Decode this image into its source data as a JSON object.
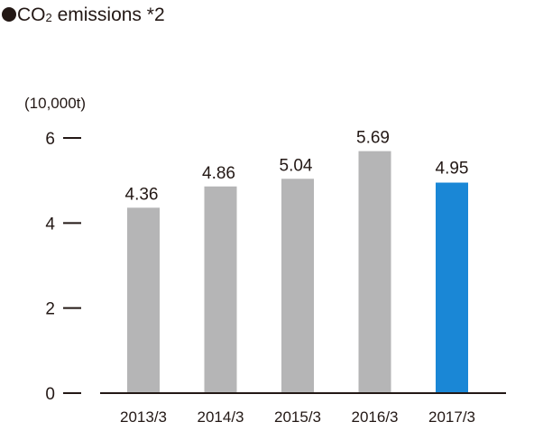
{
  "title": {
    "prefix": "CO",
    "subscript": "2",
    "suffix": " emissions *2"
  },
  "chart_data": {
    "type": "bar",
    "title": "CO2 emissions *2",
    "ylabel": "(10,000t)",
    "xlabel": "",
    "ylim": [
      0,
      6
    ],
    "yticks": [
      0,
      2,
      4,
      6
    ],
    "categories": [
      "2013/3",
      "2014/3",
      "2015/3",
      "2016/3",
      "2017/3"
    ],
    "values": [
      4.36,
      4.86,
      5.04,
      5.69,
      4.95
    ],
    "labels": [
      "4.36",
      "4.86",
      "5.04",
      "5.69",
      "4.95"
    ],
    "highlight_index": 4,
    "colors": {
      "bar": "#b5b5b6",
      "highlight": "#1a87d6",
      "text": "#231815"
    },
    "grid": false
  }
}
